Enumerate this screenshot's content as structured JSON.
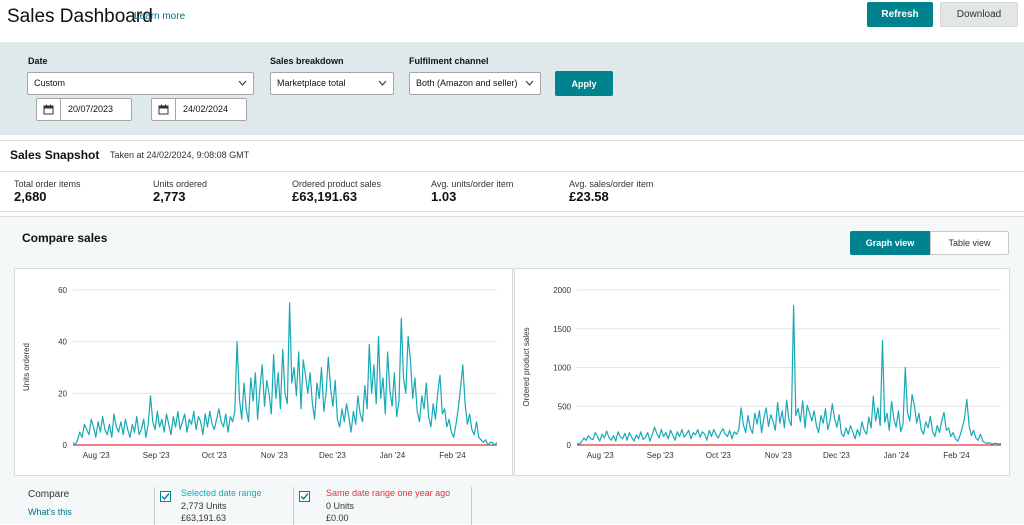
{
  "header": {
    "title": "Sales Dashboard",
    "learn_more": "Learn more",
    "refresh_label": "Refresh",
    "download_label": "Download"
  },
  "filters": {
    "date_label": "Date",
    "date_value": "Custom",
    "start_date": "20/07/2023",
    "end_date": "24/02/2024",
    "breakdown_label": "Sales breakdown",
    "breakdown_value": "Marketplace total",
    "channel_label": "Fulfilment channel",
    "channel_value": "Both (Amazon and seller)",
    "apply_label": "Apply"
  },
  "snapshot": {
    "title": "Sales Snapshot",
    "taken_at": "Taken at 24/02/2024, 9:08:08 GMT",
    "metrics": [
      {
        "label": "Total order items",
        "value": "2,680"
      },
      {
        "label": "Units ordered",
        "value": "2,773"
      },
      {
        "label": "Ordered product sales",
        "value": "£63,191.63"
      },
      {
        "label": "Avg. units/order item",
        "value": "1.03"
      },
      {
        "label": "Avg. sales/order item",
        "value": "£23.58"
      }
    ]
  },
  "compare": {
    "title": "Compare sales",
    "graph_view_label": "Graph view",
    "table_view_label": "Table view",
    "compare_label": "Compare",
    "whats_this": "What's this",
    "selected": {
      "title": "Selected date range",
      "units": "2,773 Units",
      "sales": "£63,191.63"
    },
    "previous": {
      "title": "Same date range one year ago",
      "units": "0 Units",
      "sales": "£0.00"
    }
  },
  "colors": {
    "accent": "#00838f",
    "series_current": "#17a9b5",
    "series_previous": "#e3303d"
  },
  "icons": {
    "calendar": "calendar-icon",
    "dropdown": "chevron-down-icon",
    "check": "checkmark-icon"
  },
  "chart_data": [
    {
      "type": "line",
      "title": "",
      "xlabel": "",
      "ylabel": "Units ordered",
      "ylim": [
        0,
        60
      ],
      "yticks": [
        0,
        20,
        40,
        60
      ],
      "x_tick_labels": [
        "Aug '23",
        "Sep '23",
        "Oct '23",
        "Nov '23",
        "Dec '23",
        "Jan '24",
        "Feb '24"
      ],
      "x_tick_day_offsets": [
        12,
        43,
        73,
        104,
        134,
        165,
        196
      ],
      "x_range_days": [
        0,
        219
      ],
      "grid": true,
      "series": [
        {
          "values": [
            1,
            0,
            2,
            5,
            3,
            8,
            6,
            4,
            10,
            7,
            3,
            9,
            5,
            11,
            6,
            4,
            8,
            3,
            12,
            7,
            5,
            9,
            4,
            10,
            6,
            3,
            8,
            5,
            11,
            4,
            6,
            10,
            3,
            8,
            19,
            9,
            6,
            13,
            7,
            10,
            5,
            12,
            8,
            4,
            11,
            7,
            13,
            6,
            9,
            12,
            5,
            10,
            8,
            13,
            6,
            11,
            9,
            4,
            12,
            7,
            13,
            8,
            6,
            10,
            14,
            9,
            7,
            12,
            5,
            11,
            9,
            13,
            40,
            18,
            10,
            24,
            14,
            9,
            26,
            17,
            28,
            10,
            22,
            31,
            15,
            25,
            20,
            12,
            35,
            18,
            28,
            14,
            37,
            20,
            16,
            55,
            24,
            30,
            19,
            36,
            14,
            33,
            27,
            20,
            28,
            16,
            10,
            24,
            18,
            30,
            13,
            20,
            34,
            22,
            15,
            25,
            10,
            7,
            14,
            9,
            16,
            11,
            5,
            13,
            8,
            19,
            12,
            9,
            23,
            14,
            39,
            20,
            31,
            16,
            42,
            18,
            26,
            12,
            36,
            21,
            15,
            28,
            11,
            17,
            49,
            26,
            20,
            42,
            33,
            18,
            26,
            13,
            9,
            19,
            14,
            24,
            11,
            7,
            16,
            10,
            20,
            27,
            12,
            14,
            7,
            10,
            5,
            3,
            8,
            14,
            22,
            31,
            16,
            8,
            12,
            6,
            4,
            9,
            3,
            2,
            1,
            2,
            0,
            1,
            1,
            0,
            1
          ]
        },
        {
          "values": [
            0,
            0
          ]
        }
      ]
    },
    {
      "type": "line",
      "title": "",
      "xlabel": "",
      "ylabel": "Ordered product sales",
      "ylim": [
        0,
        2000
      ],
      "yticks": [
        0,
        500,
        1000,
        1500,
        2000
      ],
      "x_tick_labels": [
        "Aug '23",
        "Sep '23",
        "Oct '23",
        "Nov '23",
        "Dec '23",
        "Jan '24",
        "Feb '24"
      ],
      "x_tick_day_offsets": [
        12,
        43,
        73,
        104,
        134,
        165,
        196
      ],
      "x_range_days": [
        0,
        219
      ],
      "grid": true,
      "series": [
        {
          "values": [
            20,
            10,
            40,
            90,
            60,
            120,
            80,
            70,
            160,
            110,
            50,
            140,
            90,
            180,
            100,
            60,
            120,
            50,
            170,
            110,
            80,
            150,
            60,
            160,
            100,
            50,
            130,
            80,
            170,
            70,
            100,
            160,
            50,
            130,
            230,
            150,
            90,
            200,
            110,
            160,
            80,
            190,
            130,
            60,
            170,
            110,
            200,
            100,
            140,
            190,
            80,
            160,
            130,
            200,
            100,
            170,
            140,
            60,
            190,
            110,
            200,
            130,
            90,
            160,
            210,
            140,
            110,
            190,
            80,
            170,
            140,
            200,
            480,
            260,
            160,
            380,
            220,
            150,
            410,
            270,
            440,
            160,
            350,
            480,
            240,
            390,
            310,
            190,
            550,
            280,
            440,
            220,
            580,
            320,
            250,
            1800,
            380,
            470,
            300,
            570,
            220,
            510,
            420,
            310,
            440,
            250,
            160,
            380,
            280,
            470,
            200,
            310,
            530,
            340,
            230,
            390,
            150,
            110,
            220,
            140,
            250,
            170,
            80,
            200,
            120,
            300,
            190,
            140,
            360,
            220,
            630,
            310,
            480,
            250,
            1350,
            290,
            410,
            190,
            560,
            330,
            230,
            440,
            170,
            270,
            1000,
            410,
            310,
            650,
            510,
            280,
            410,
            200,
            140,
            300,
            220,
            370,
            170,
            110,
            250,
            160,
            310,
            420,
            190,
            220,
            110,
            160,
            80,
            50,
            120,
            220,
            340,
            590,
            250,
            120,
            190,
            90,
            60,
            140,
            50,
            30,
            20,
            30,
            10,
            20,
            20,
            10,
            20
          ]
        },
        {
          "values": [
            0,
            0
          ]
        }
      ]
    }
  ]
}
